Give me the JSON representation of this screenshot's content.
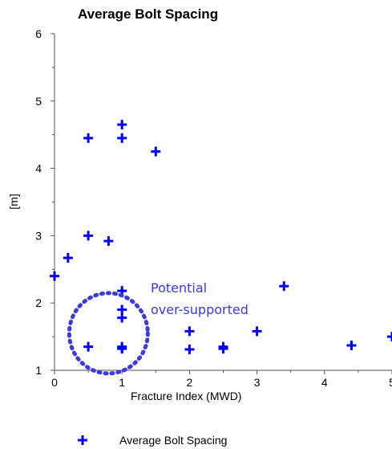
{
  "chart_data": {
    "type": "scatter",
    "title": "Average Bolt Spacing",
    "xlabel": "Fracture Index (MWD)",
    "ylabel": "[m]",
    "xlim": [
      0,
      5
    ],
    "ylim": [
      1,
      6
    ],
    "x_ticks": [
      "0",
      "1",
      "2",
      "3",
      "4",
      "5"
    ],
    "y_ticks": [
      "1",
      "2",
      "3",
      "4",
      "5",
      "6"
    ],
    "marker_color": "#0000ff",
    "annotation_color": "#3a3ae0",
    "series": [
      {
        "name": "Average Bolt Spacing",
        "points": [
          [
            0,
            2.4
          ],
          [
            0.2,
            2.67
          ],
          [
            0.5,
            3.0
          ],
          [
            0.8,
            2.92
          ],
          [
            0.5,
            4.45
          ],
          [
            1,
            4.65
          ],
          [
            1,
            4.45
          ],
          [
            1.5,
            4.25
          ],
          [
            1,
            2.18
          ],
          [
            1,
            1.9
          ],
          [
            1,
            1.78
          ],
          [
            0.5,
            1.35
          ],
          [
            1,
            1.35
          ],
          [
            1,
            1.32
          ],
          [
            2,
            1.58
          ],
          [
            2,
            1.31
          ],
          [
            2.5,
            1.35
          ],
          [
            2.5,
            1.32
          ],
          [
            3,
            1.58
          ],
          [
            3.4,
            2.25
          ],
          [
            4.4,
            1.37
          ],
          [
            5,
            1.5
          ]
        ]
      }
    ],
    "annotation": {
      "lines": [
        "Potential",
        "over-supported"
      ],
      "ellipse_center": [
        0.8,
        1.55
      ]
    },
    "legend": {
      "placement": "bottom-left",
      "label": "Average Bolt Spacing"
    }
  }
}
